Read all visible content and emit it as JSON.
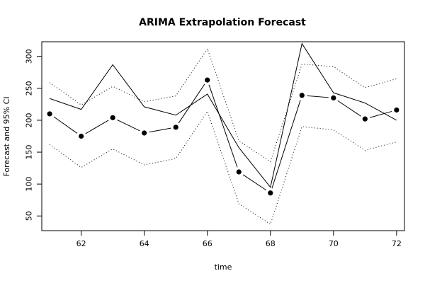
{
  "chart_data": {
    "type": "line",
    "title": "ARIMA Extrapolation Forecast",
    "xlabel": "time",
    "ylabel": "Forecast and 95% CI",
    "xlim": [
      60.75,
      72.25
    ],
    "ylim": [
      27,
      323
    ],
    "x_ticks": [
      62,
      64,
      66,
      68,
      70,
      72
    ],
    "y_ticks": [
      50,
      100,
      150,
      200,
      250,
      300
    ],
    "grid": false,
    "x": [
      61,
      62,
      63,
      64,
      65,
      66,
      67,
      68,
      69,
      70,
      71,
      72
    ],
    "series": [
      {
        "role": "actual",
        "style": "solid-line",
        "values": [
          234,
          217,
          287,
          221,
          208,
          241,
          157,
          95,
          320,
          243,
          227,
          200
        ]
      },
      {
        "role": "forecast",
        "style": "line-with-points",
        "values": [
          210,
          175,
          204,
          180,
          189,
          263,
          119,
          86,
          239,
          235,
          202,
          216
        ]
      },
      {
        "role": "upper-95-ci",
        "style": "dotted-line",
        "values": [
          259,
          224,
          253,
          229,
          238,
          312,
          168,
          135,
          288,
          284,
          251,
          265
        ]
      },
      {
        "role": "lower-95-ci",
        "style": "dotted-line",
        "values": [
          162,
          126,
          155,
          130,
          140,
          214,
          69,
          37,
          190,
          185,
          153,
          166
        ]
      }
    ]
  }
}
